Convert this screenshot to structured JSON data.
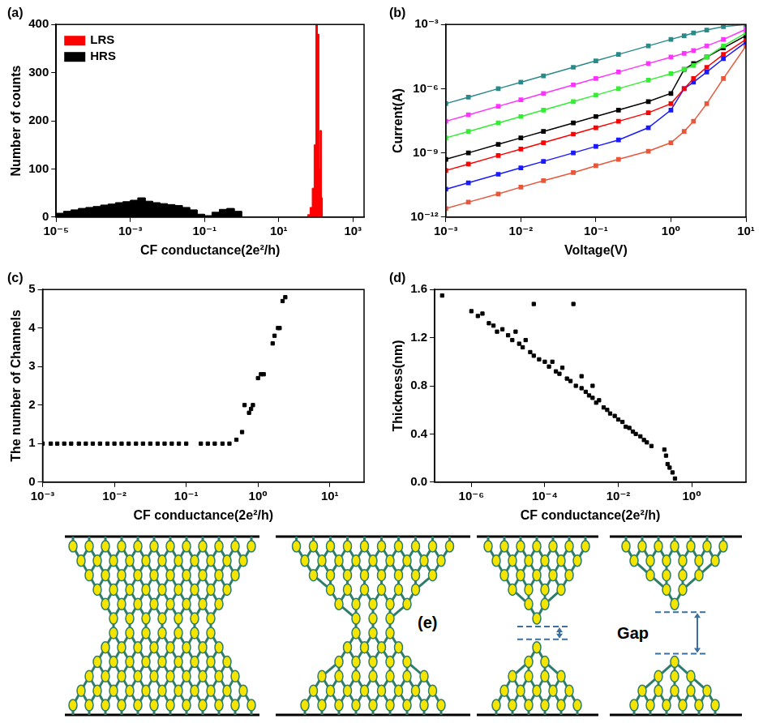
{
  "chart_data": [
    {
      "type": "histogram",
      "title": "(a)",
      "x_label": "CF conductance(2e²/h)",
      "y_label": "Number of counts",
      "log": "x",
      "grid": false,
      "legend": "upper left",
      "xlim": [
        1e-05,
        2000
      ],
      "xticks": [
        {
          "value": 1e-05,
          "label": "10⁻⁵"
        },
        {
          "value": 0.001,
          "label": "10⁻³"
        },
        {
          "value": 0.1,
          "label": "10⁻¹"
        },
        {
          "value": 10,
          "label": "10¹"
        },
        {
          "value": 1000,
          "label": "10³"
        }
      ],
      "ylim": [
        0,
        400
      ],
      "yticks": [
        0,
        100,
        200,
        300,
        400
      ],
      "series": [
        {
          "name": "LRS",
          "color": "#ff0000",
          "bins": [
            60,
            70,
            80,
            90,
            100,
            110,
            120,
            130,
            140,
            150
          ],
          "counts": [
            5,
            20,
            60,
            150,
            400,
            380,
            100,
            180,
            40
          ]
        },
        {
          "name": "HRS",
          "color": "#000000",
          "bins": [
            1e-05,
            1.585e-05,
            2.512e-05,
            3.981e-05,
            6.31e-05,
            0.0001,
            0.0001585,
            0.0002512,
            0.0003981,
            0.000631,
            0.001,
            0.001585,
            0.002512,
            0.003981,
            0.00631,
            0.01,
            0.01585,
            0.02512,
            0.03981,
            0.0631,
            0.1,
            0.1585,
            0.2512,
            0.3981,
            0.631,
            1
          ],
          "counts": [
            8,
            12,
            15,
            18,
            20,
            22,
            25,
            27,
            30,
            32,
            35,
            40,
            33,
            30,
            28,
            26,
            24,
            20,
            15,
            6,
            3,
            10,
            16,
            18,
            12
          ]
        }
      ]
    },
    {
      "type": "line",
      "title": "(b)",
      "x_label": "Voltage(V)",
      "y_label": "Current(A)",
      "log": true,
      "grid": false,
      "marker": "square",
      "line_style": "solid",
      "xlim": [
        0.001,
        10
      ],
      "xticks": [
        {
          "value": 0.001,
          "label": "10⁻³"
        },
        {
          "value": 0.01,
          "label": "10⁻²"
        },
        {
          "value": 0.1,
          "label": "10⁻¹"
        },
        {
          "value": 1,
          "label": "10⁰"
        },
        {
          "value": 10,
          "label": "10¹"
        }
      ],
      "ylim": [
        1e-12,
        0.001
      ],
      "yticks": [
        {
          "value": 1e-12,
          "label": "10⁻¹²"
        },
        {
          "value": 1e-09,
          "label": "10⁻⁹"
        },
        {
          "value": 1e-06,
          "label": "10⁻⁶"
        },
        {
          "value": 0.001,
          "label": "10⁻³"
        }
      ],
      "x": [
        0.001,
        0.002,
        0.005,
        0.01,
        0.02,
        0.05,
        0.1,
        0.2,
        0.5,
        1,
        1.5,
        2,
        3,
        5,
        10
      ],
      "series": [
        {
          "color": "#2a8a8a",
          "values": [
            2e-07,
            4e-07,
            1e-06,
            2e-06,
            4e-06,
            1e-05,
            2e-05,
            4e-05,
            0.0001,
            0.0002,
            0.0003,
            0.0004,
            0.00055,
            0.0008,
            0.001
          ]
        },
        {
          "color": "#ff33ff",
          "values": [
            3e-08,
            6e-08,
            1.5e-07,
            3e-07,
            6e-07,
            1.5e-06,
            3e-06,
            6e-06,
            1.5e-05,
            3e-05,
            4.5e-05,
            6e-05,
            0.0001,
            0.0002,
            0.0006
          ]
        },
        {
          "color": "#33ee33",
          "values": [
            5e-09,
            1e-08,
            2.5e-08,
            5e-08,
            1e-07,
            2.5e-07,
            5e-07,
            1e-06,
            2.5e-06,
            5e-06,
            8e-06,
            1.2e-05,
            3e-05,
            0.0001,
            0.0004
          ]
        },
        {
          "color": "#000000",
          "values": [
            5e-10,
            1e-09,
            2.5e-09,
            5e-09,
            1e-08,
            2.5e-08,
            5e-08,
            1e-07,
            2.5e-07,
            6e-07,
            8e-06,
            1.5e-05,
            3e-05,
            8e-05,
            0.0003
          ]
        },
        {
          "color": "#ff0000",
          "values": [
            1.5e-10,
            3e-10,
            7.5e-10,
            1.5e-09,
            3e-09,
            7.5e-09,
            1.5e-08,
            3e-08,
            7.5e-08,
            2e-07,
            1e-06,
            3e-06,
            1e-05,
            4e-05,
            0.0002
          ]
        },
        {
          "color": "#1a1aff",
          "values": [
            2e-11,
            4e-11,
            1e-10,
            2e-10,
            4e-10,
            1e-09,
            2e-09,
            4e-09,
            1.5e-08,
            1e-07,
            1e-06,
            2e-06,
            6e-06,
            2.5e-05,
            0.00015
          ]
        },
        {
          "color": "#e8573a",
          "values": [
            2.5e-12,
            5e-12,
            1.2e-11,
            2.5e-11,
            5e-11,
            1.2e-10,
            2.5e-10,
            5e-10,
            1.2e-09,
            3e-09,
            1e-08,
            3e-08,
            2e-07,
            3e-06,
            0.0001
          ]
        }
      ]
    },
    {
      "type": "scatter",
      "title": "(c)",
      "x_label": "CF conductance(2e²/h)",
      "y_label": "The number of Channels",
      "log": "x",
      "grid": false,
      "marker": "square",
      "color": "#000000",
      "xlim": [
        0.001,
        30
      ],
      "xticks": [
        {
          "value": 0.001,
          "label": "10⁻³"
        },
        {
          "value": 0.01,
          "label": "10⁻²"
        },
        {
          "value": 0.1,
          "label": "10⁻¹"
        },
        {
          "value": 1,
          "label": "10⁰"
        },
        {
          "value": 10,
          "label": "10¹"
        }
      ],
      "ylim": [
        0,
        5
      ],
      "yticks": [
        0,
        1,
        2,
        3,
        4,
        5
      ],
      "x": [
        0.001,
        0.0013,
        0.0016,
        0.002,
        0.0025,
        0.0032,
        0.004,
        0.005,
        0.0063,
        0.008,
        0.01,
        0.0126,
        0.0158,
        0.02,
        0.025,
        0.0316,
        0.04,
        0.05,
        0.063,
        0.079,
        0.1,
        0.16,
        0.2,
        0.25,
        0.32,
        0.4,
        0.5,
        0.6,
        0.65,
        0.75,
        0.8,
        0.85,
        1.0,
        1.1,
        1.2,
        1.6,
        1.7,
        1.9,
        2.0,
        2.2,
        2.4
      ],
      "values": [
        1,
        1,
        1,
        1,
        1,
        1,
        1,
        1,
        1,
        1,
        1,
        1,
        1,
        1,
        1,
        1,
        1,
        1,
        1,
        1,
        1,
        1,
        1,
        1,
        1,
        1,
        1.1,
        1.3,
        2,
        1.8,
        1.9,
        2,
        2.7,
        2.8,
        2.8,
        3.6,
        3.8,
        4,
        4,
        4.7,
        4.8
      ]
    },
    {
      "type": "scatter",
      "title": "(d)",
      "x_label": "CF conductance(2e²/h)",
      "y_label": "Thickness(nm)",
      "log": "x",
      "grid": false,
      "marker": "square",
      "color": "#000000",
      "xlim": [
        1e-07,
        30
      ],
      "xticks": [
        {
          "value": 1e-06,
          "label": "10⁻⁶"
        },
        {
          "value": 0.0001,
          "label": "10⁻⁴"
        },
        {
          "value": 0.01,
          "label": "10⁻²"
        },
        {
          "value": 1,
          "label": "10⁰"
        }
      ],
      "ylim": [
        0,
        1.6
      ],
      "yticks": [
        {
          "value": 0,
          "label": "0.0"
        },
        0.4,
        0.8,
        1.2,
        1.6
      ],
      "x": [
        1.6e-07,
        1e-06,
        1.5e-06,
        2e-06,
        3e-06,
        4e-06,
        5e-06,
        7e-06,
        1e-05,
        1.3e-05,
        1.6e-05,
        2e-05,
        2.5e-05,
        3e-05,
        4e-05,
        5e-05,
        5e-05,
        7e-05,
        0.0001,
        0.00013,
        0.00016,
        0.0002,
        0.00025,
        0.0003,
        0.0004,
        0.0005,
        0.0006,
        0.0007,
        0.001,
        0.001,
        0.0013,
        0.0016,
        0.002,
        0.002,
        0.0025,
        0.003,
        0.004,
        0.005,
        0.006,
        0.008,
        0.01,
        0.013,
        0.016,
        0.02,
        0.025,
        0.03,
        0.04,
        0.05,
        0.06,
        0.08,
        0.18,
        0.2,
        0.22,
        0.25,
        0.3,
        0.35
      ],
      "values": [
        1.55,
        1.42,
        1.38,
        1.4,
        1.32,
        1.3,
        1.25,
        1.27,
        1.22,
        1.18,
        1.25,
        1.15,
        1.12,
        1.18,
        1.08,
        1.48,
        1.05,
        1.02,
        1.0,
        0.96,
        1.0,
        0.92,
        0.9,
        0.95,
        0.86,
        0.84,
        1.48,
        0.8,
        0.78,
        0.88,
        0.75,
        0.72,
        0.7,
        0.8,
        0.66,
        0.68,
        0.62,
        0.6,
        0.57,
        0.55,
        0.52,
        0.5,
        0.46,
        0.45,
        0.42,
        0.4,
        0.38,
        0.35,
        0.33,
        0.3,
        0.27,
        0.22,
        0.15,
        0.12,
        0.08,
        0.03
      ]
    }
  ],
  "diagram": {
    "label": "(e)",
    "annotation": "Gap"
  }
}
